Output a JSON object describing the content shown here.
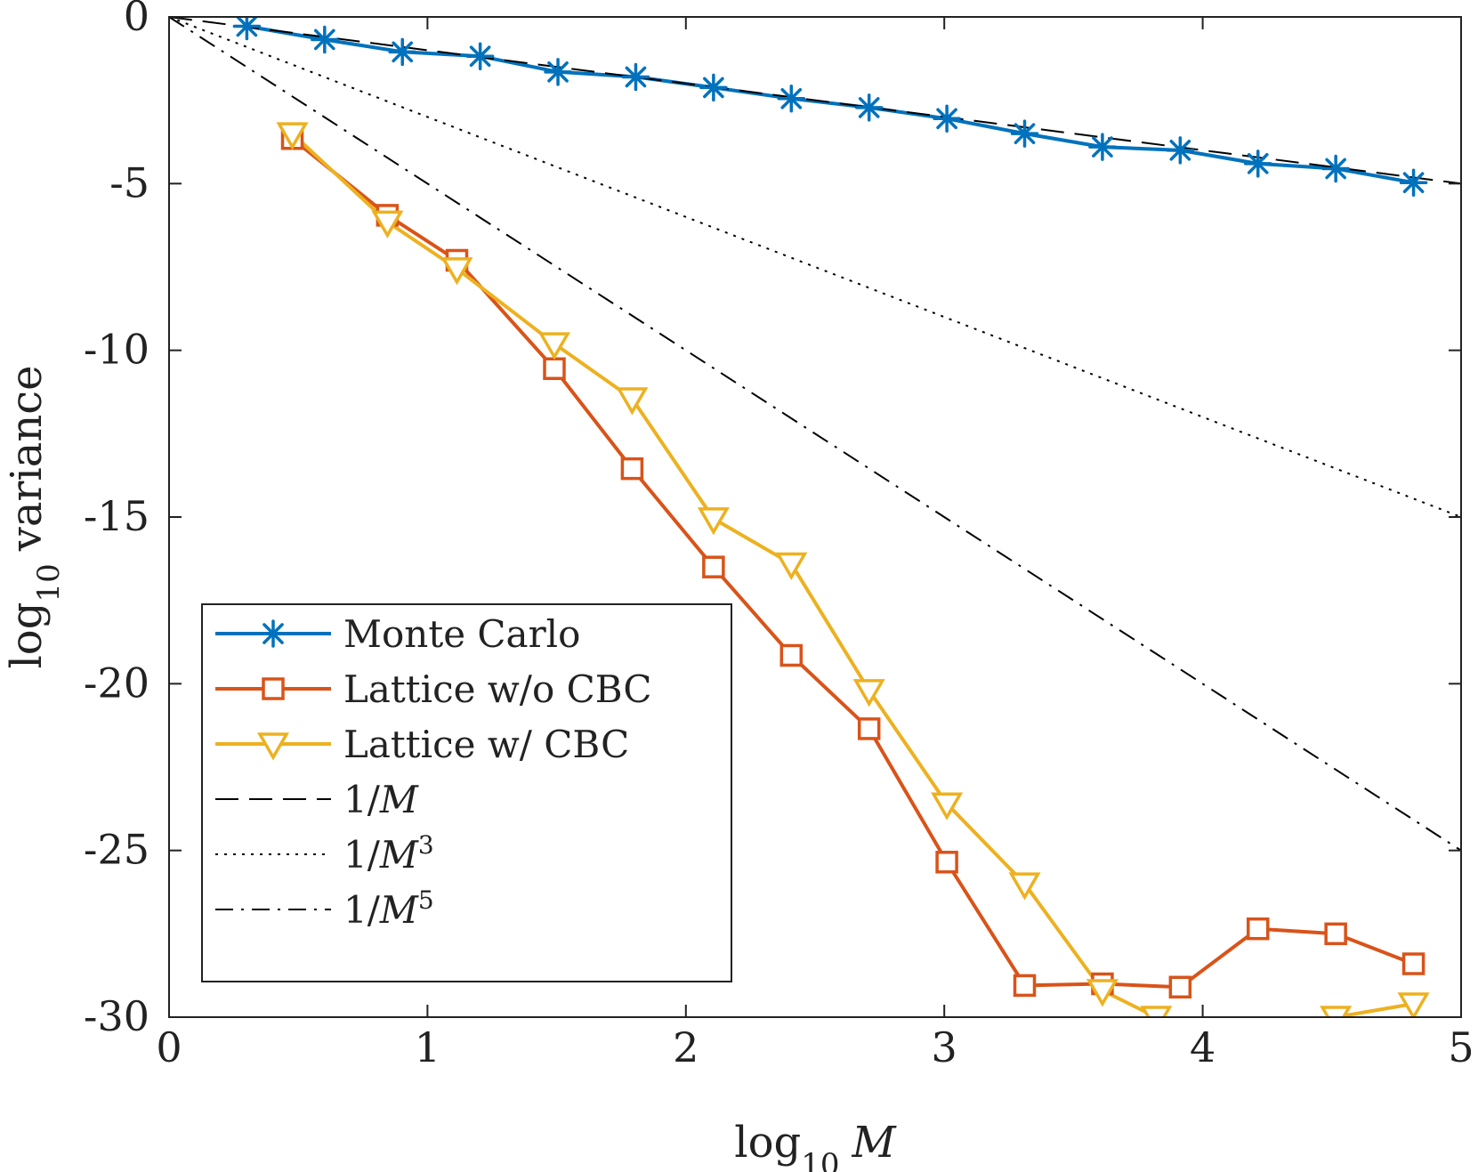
{
  "chart_data": {
    "type": "line",
    "xlabel": "log10 M",
    "ylabel": "log10 variance",
    "xlabel_parts": {
      "base": "log",
      "sub": "10",
      "var": "M"
    },
    "ylabel_parts": {
      "base": "log",
      "sub": "10",
      "rest": "variance"
    },
    "xlim": [
      0,
      5
    ],
    "ylim": [
      -30,
      0
    ],
    "xticks": [
      0,
      1,
      2,
      3,
      4,
      5
    ],
    "yticks": [
      0,
      -5,
      -10,
      -15,
      -20,
      -25,
      -30
    ],
    "xtick_labels": [
      "0",
      "1",
      "2",
      "3",
      "4",
      "5"
    ],
    "ytick_labels": [
      "0",
      "-5",
      "-10",
      "-15",
      "-20",
      "-25",
      "-30"
    ],
    "grid": false,
    "legend_position": "bottom-left",
    "series": [
      {
        "name": "Monte Carlo",
        "color": "#0072BD",
        "marker": "asterisk",
        "line": "solid",
        "x": [
          0.301,
          0.602,
          0.903,
          1.204,
          1.505,
          1.806,
          2.107,
          2.408,
          2.709,
          3.01,
          3.311,
          3.612,
          3.913,
          4.214,
          4.515,
          4.816
        ],
        "y": [
          -0.28,
          -0.68,
          -1.05,
          -1.18,
          -1.65,
          -1.8,
          -2.12,
          -2.45,
          -2.72,
          -3.05,
          -3.5,
          -3.9,
          -4.0,
          -4.4,
          -4.55,
          -4.97
        ]
      },
      {
        "name": "Lattice w/o CBC",
        "color": "#D95319",
        "marker": "square",
        "line": "solid",
        "x": [
          0.477,
          0.845,
          1.114,
          1.491,
          1.792,
          2.107,
          2.408,
          2.709,
          3.01,
          3.311,
          3.612,
          3.913,
          4.214,
          4.515,
          4.816
        ],
        "y": [
          -3.65,
          -5.95,
          -7.3,
          -10.55,
          -13.55,
          -16.5,
          -19.15,
          -21.35,
          -25.35,
          -29.05,
          -29.0,
          -29.1,
          -27.35,
          -27.5,
          -28.4
        ]
      },
      {
        "name": "Lattice w/ CBC",
        "color": "#EDB120",
        "marker": "triangle-down",
        "line": "solid",
        "x": [
          0.477,
          0.845,
          1.114,
          1.491,
          1.792,
          2.107,
          2.408,
          2.709,
          3.01,
          3.311,
          3.612,
          3.82,
          null,
          4.515,
          4.816
        ],
        "y": [
          -3.5,
          -6.15,
          -7.55,
          -9.8,
          -11.45,
          -15.05,
          -16.4,
          -20.2,
          -23.6,
          -26.0,
          -29.2,
          -30.0,
          null,
          -30.0,
          -29.6
        ]
      },
      {
        "name": "1/M",
        "color": "#000000",
        "marker": "none",
        "line": "dashed",
        "x": [
          0,
          5
        ],
        "y": [
          0,
          -5
        ]
      },
      {
        "name": "1/M^3",
        "color": "#000000",
        "marker": "none",
        "line": "dotted",
        "x": [
          0,
          5
        ],
        "y": [
          0,
          -15
        ]
      },
      {
        "name": "1/M^5",
        "color": "#000000",
        "marker": "none",
        "line": "dashdot",
        "x": [
          0,
          5
        ],
        "y": [
          0,
          -25
        ]
      }
    ],
    "legend_entries": [
      {
        "series": "Monte Carlo",
        "label": "Monte Carlo"
      },
      {
        "series": "Lattice w/o CBC",
        "label": "Lattice w/o CBC"
      },
      {
        "series": "Lattice w/ CBC",
        "label": "Lattice w/ CBC"
      },
      {
        "series": "1/M",
        "label_prefix": "1/",
        "label_var": "M",
        "label_sup": ""
      },
      {
        "series": "1/M^3",
        "label_prefix": "1/",
        "label_var": "M",
        "label_sup": "3"
      },
      {
        "series": "1/M^5",
        "label_prefix": "1/",
        "label_var": "M",
        "label_sup": "5"
      }
    ]
  }
}
